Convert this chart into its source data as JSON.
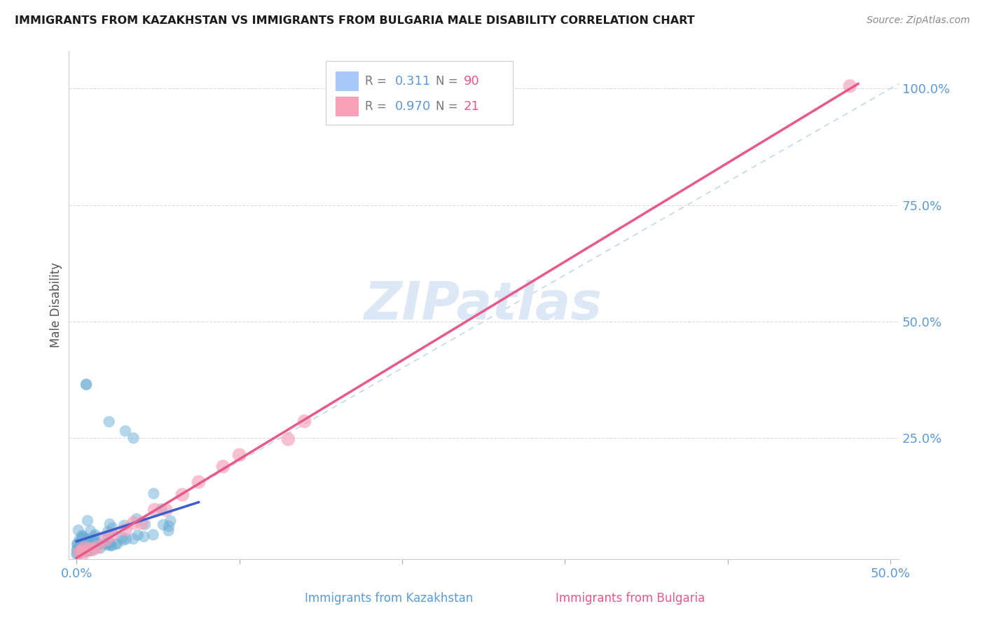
{
  "title": "IMMIGRANTS FROM KAZAKHSTAN VS IMMIGRANTS FROM BULGARIA MALE DISABILITY CORRELATION CHART",
  "source": "Source: ZipAtlas.com",
  "xlabel_label": "Immigrants from Kazakhstan",
  "ylabel_label": "Male Disability",
  "x_label_right": "Immigrants from Bulgaria",
  "xlim": [
    -0.005,
    0.505
  ],
  "ylim": [
    -0.01,
    1.08
  ],
  "kaz_color": "#6baed6",
  "bul_color": "#f4a0b8",
  "kaz_line_color": "#3a5fcd",
  "bul_line_color": "#e8588a",
  "diag_line_color": "#b8cfe8",
  "watermark": "ZIPatlas",
  "watermark_color": "#dce8f5",
  "background_color": "#ffffff",
  "grid_color": "#d8d8d8",
  "right_tick_color": "#5b9bd5",
  "bottom_tick_color": "#5b9bd5"
}
